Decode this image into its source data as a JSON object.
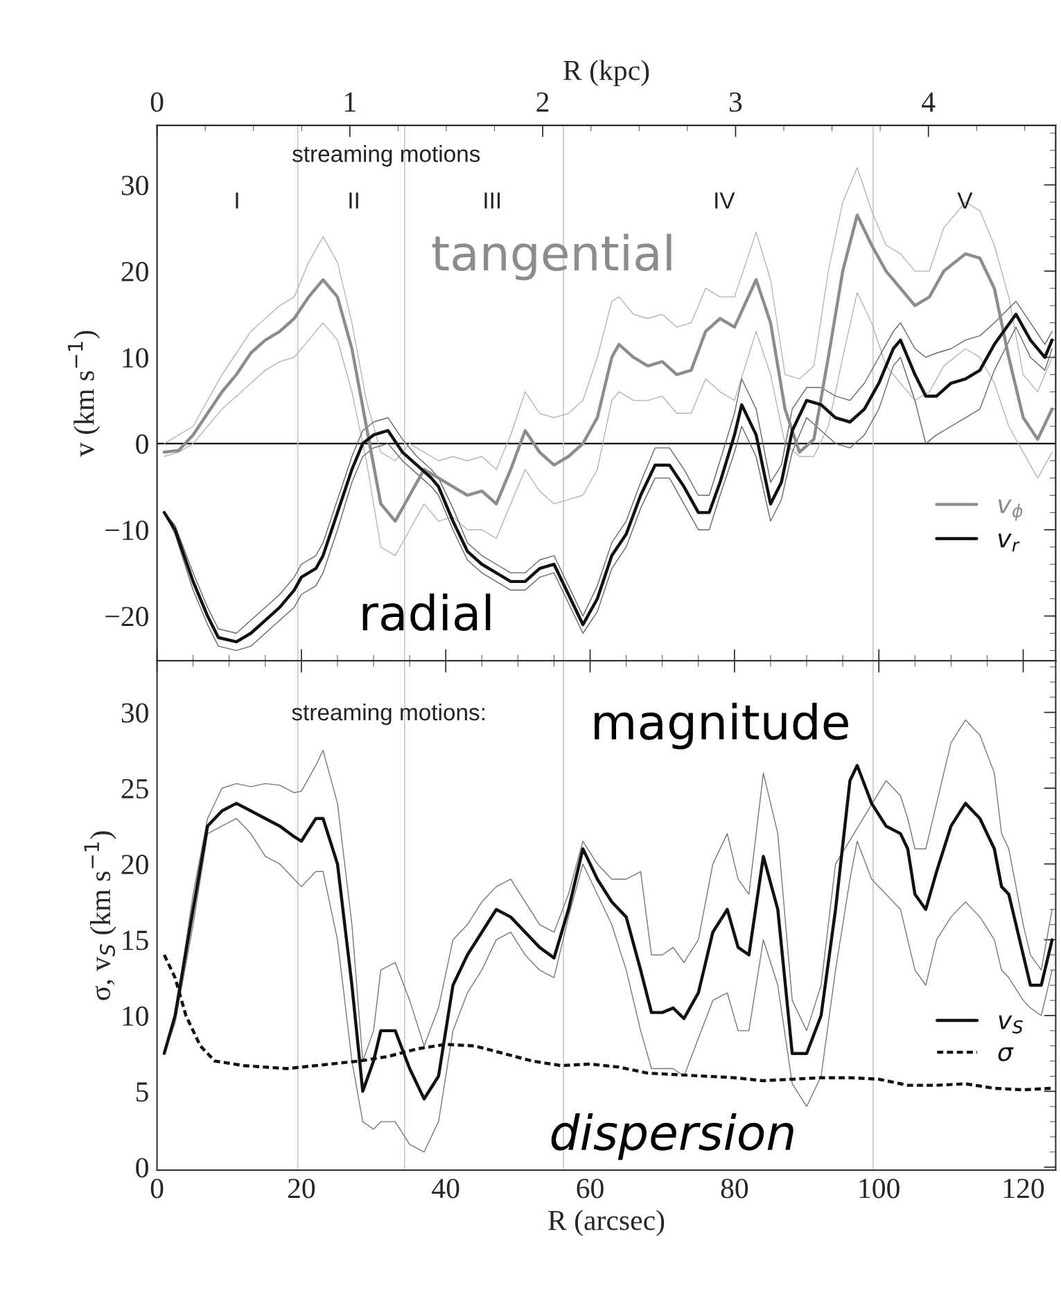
{
  "chart_data": [
    {
      "type": "line",
      "ylabel": "v (km s$^{−1}$)",
      "x2label": "R (kpc)",
      "xlim": [
        0,
        124.5
      ],
      "ylim": [
        -25.2,
        36.9
      ],
      "x2lim": [
        0,
        4.66
      ],
      "xticks": [
        0,
        20,
        40,
        60,
        80,
        100,
        120
      ],
      "tick_labels": "y",
      "x2ticks": [
        0,
        1,
        2,
        3,
        4
      ],
      "yticks": [
        {
          "value": -20,
          "label": "−20"
        },
        {
          "value": -10,
          "label": "−10"
        },
        0,
        10,
        20,
        30
      ],
      "grid": false,
      "legend": "bottom right",
      "ref_lines": [
        {
          "axis": "y",
          "value": 0,
          "color": "#000000"
        },
        {
          "axis": "x",
          "value": 19.5,
          "color": "#c8c8c8"
        },
        {
          "axis": "x",
          "value": 34.3,
          "color": "#c8c8c8"
        },
        {
          "axis": "x",
          "value": 56.3,
          "color": "#c8c8c8"
        },
        {
          "axis": "x",
          "value": 99.2,
          "color": "#c8c8c8"
        }
      ],
      "annotations": [
        "streaming motions",
        "I",
        "II",
        "III",
        "IV",
        "V",
        "tangential",
        "radial"
      ],
      "series": [
        {
          "name": "v$_{ϕ}$",
          "color": "#8c8c8c",
          "x": [
            1,
            3,
            5,
            7,
            9,
            11,
            13,
            15,
            17,
            19,
            21,
            23,
            25,
            27,
            29,
            31,
            33,
            35,
            37,
            39,
            41,
            43,
            45,
            47,
            49,
            51,
            53,
            55,
            57,
            59,
            61,
            63,
            64,
            66,
            68,
            70,
            72,
            74,
            76,
            78,
            80,
            83,
            85,
            87,
            89,
            91,
            93,
            95,
            97,
            99,
            101,
            103,
            105,
            107,
            109,
            112,
            114,
            116,
            118,
            120,
            122,
            124
          ],
          "values": [
            -1,
            -0.8,
            1,
            3.5,
            6,
            8,
            10.5,
            12,
            13,
            14.5,
            17,
            19,
            17,
            11,
            2,
            -7,
            -9,
            -6,
            -3,
            -4,
            -5,
            -6,
            -5.5,
            -7,
            -3,
            1.5,
            -1,
            -2.5,
            -1.5,
            0,
            3,
            10,
            11.5,
            10,
            9,
            9.5,
            8,
            8.5,
            13,
            14.5,
            13.5,
            19,
            14,
            4,
            -1,
            0.5,
            10,
            20,
            26.5,
            23,
            20,
            18,
            16,
            17,
            20,
            22,
            21.5,
            18,
            10,
            3,
            0.5,
            4
          ]
        },
        {
          "color": "#b4b4b4",
          "x": [
            1,
            3,
            5,
            7,
            9,
            11,
            13,
            15,
            17,
            19,
            21,
            23,
            25,
            27,
            29,
            31,
            33,
            35,
            37,
            39,
            41,
            43,
            45,
            47,
            49,
            51,
            53,
            55,
            57,
            59,
            61,
            63,
            64,
            66,
            68,
            70,
            72,
            74,
            76,
            78,
            80,
            83,
            85,
            87,
            89,
            91,
            93,
            95,
            97,
            99,
            101,
            103,
            105,
            107,
            109,
            112,
            114,
            116,
            118,
            120,
            122,
            124
          ],
          "values": [
            0,
            1,
            2,
            5,
            8,
            10.5,
            13,
            14.5,
            16,
            17,
            21,
            24,
            21,
            14,
            5,
            -1,
            -2,
            0,
            -1,
            -2,
            -1.5,
            -2,
            -1.5,
            -3,
            1,
            6,
            3.5,
            3,
            3.5,
            5,
            10,
            16.5,
            17,
            15,
            14.5,
            15,
            13.5,
            14,
            18,
            17,
            17,
            24.5,
            19,
            8,
            7.5,
            9,
            20,
            28,
            32,
            27,
            23,
            22,
            20,
            20,
            25,
            28,
            27,
            23,
            17,
            8,
            6,
            10
          ]
        },
        {
          "color": "#b4b4b4",
          "x": [
            1,
            3,
            5,
            7,
            9,
            11,
            13,
            15,
            17,
            19,
            21,
            23,
            25,
            27,
            29,
            31,
            33,
            35,
            37,
            39,
            41,
            43,
            45,
            47,
            49,
            51,
            53,
            55,
            57,
            59,
            61,
            63,
            64,
            66,
            68,
            70,
            72,
            74,
            76,
            78,
            80,
            83,
            85,
            87,
            89,
            91,
            93,
            95,
            97,
            99,
            101,
            103,
            105,
            107,
            109,
            112,
            114,
            116,
            118,
            120,
            122,
            124
          ],
          "values": [
            -1.5,
            -1,
            0,
            2,
            4,
            5.5,
            7,
            8.5,
            9.5,
            10,
            12,
            14,
            12,
            6,
            -2,
            -12,
            -13,
            -10,
            -7,
            -9,
            -8.5,
            -10,
            -10,
            -11,
            -7,
            -3,
            -5.5,
            -7,
            -6.5,
            -6,
            -3,
            5,
            6,
            5,
            5,
            5.5,
            3.5,
            3.5,
            7.5,
            6,
            5,
            13,
            8,
            0,
            -1.5,
            -1.5,
            2,
            10,
            17.5,
            14,
            9,
            7,
            5,
            6,
            9,
            11,
            10,
            7,
            2,
            -1,
            -4,
            -1
          ]
        },
        {
          "name": "v$_{r}$",
          "color": "#111111",
          "x": [
            1,
            2.5,
            5,
            7,
            8.5,
            11,
            13,
            15,
            17,
            19,
            20,
            22,
            23,
            25,
            27,
            28.5,
            30,
            32,
            34,
            36,
            38,
            39,
            41,
            43,
            45,
            47,
            49,
            51,
            53,
            55,
            57,
            59,
            61,
            63,
            65,
            67,
            69,
            71,
            73,
            75,
            76.5,
            78,
            80,
            81,
            83,
            85,
            86.5,
            88,
            90,
            92,
            94,
            96,
            98,
            100,
            102,
            103,
            105,
            106.5,
            108,
            110,
            112,
            114,
            116,
            119,
            121,
            123,
            124
          ],
          "values": [
            -8,
            -10,
            -16,
            -20,
            -22.5,
            -23,
            -22,
            -20.5,
            -19,
            -17,
            -15.5,
            -14.5,
            -13,
            -8,
            -3,
            0,
            1,
            1.5,
            -1,
            -2.5,
            -4,
            -5,
            -9,
            -12.5,
            -14,
            -15,
            -16,
            -16,
            -14.5,
            -14,
            -17.5,
            -21,
            -18,
            -13,
            -10.5,
            -6,
            -2.5,
            -2.5,
            -5,
            -8,
            -8,
            -4.5,
            1,
            4.5,
            1,
            -7,
            -4.5,
            1.5,
            5,
            4.5,
            3,
            2.5,
            4,
            7,
            11,
            12,
            8,
            5.5,
            5.5,
            7,
            7.5,
            8.5,
            11.5,
            15,
            12,
            10,
            12
          ]
        },
        {
          "color": "#666666",
          "x": [
            1,
            2.5,
            5,
            7,
            8.5,
            11,
            13,
            15,
            17,
            19,
            20,
            22,
            23,
            25,
            27,
            28.5,
            30,
            32,
            34,
            36,
            38,
            39,
            41,
            43,
            45,
            47,
            49,
            51,
            53,
            55,
            57,
            59,
            61,
            63,
            65,
            67,
            69,
            71,
            73,
            75,
            76.5,
            78,
            80,
            81,
            83,
            85,
            86.5,
            88,
            90,
            92,
            94,
            96,
            98,
            100,
            102,
            103,
            105,
            106.5,
            108,
            110,
            112,
            114,
            116,
            119,
            121,
            123,
            124
          ],
          "values": [
            -8,
            -9.5,
            -15,
            -19,
            -21.5,
            -22,
            -20.5,
            -19,
            -17.5,
            -15.5,
            -14,
            -13,
            -11.5,
            -6.5,
            -1.5,
            1.5,
            2.5,
            3,
            0.5,
            -1.5,
            -3,
            -4,
            -7.5,
            -11.5,
            -13,
            -14,
            -15,
            -15,
            -13.5,
            -13,
            -16.5,
            -20,
            -16.5,
            -11.5,
            -9,
            -4.5,
            -0.5,
            -0.5,
            -3,
            -6,
            -6,
            -2,
            3.5,
            7.5,
            4,
            -4.5,
            -2.5,
            4,
            6.5,
            6.5,
            5.5,
            5,
            7,
            10,
            13,
            14,
            11,
            10,
            10.5,
            11,
            12,
            12.5,
            14,
            16.5,
            14,
            11.5,
            13
          ]
        },
        {
          "color": "#666666",
          "x": [
            1,
            2.5,
            5,
            7,
            8.5,
            11,
            13,
            15,
            17,
            19,
            20,
            22,
            23,
            25,
            27,
            28.5,
            30,
            32,
            34,
            36,
            38,
            39,
            41,
            43,
            45,
            47,
            49,
            51,
            53,
            55,
            57,
            59,
            61,
            63,
            65,
            67,
            69,
            71,
            73,
            75,
            76.5,
            78,
            80,
            81,
            83,
            85,
            86.5,
            88,
            90,
            92,
            94,
            96,
            98,
            100,
            102,
            103,
            105,
            106.5,
            108,
            110,
            112,
            114,
            116,
            119,
            121,
            123,
            124
          ],
          "values": [
            -8,
            -10.5,
            -17,
            -21,
            -23.5,
            -24,
            -23.5,
            -22,
            -20.5,
            -19,
            -17.5,
            -16.5,
            -15,
            -10,
            -4.5,
            -1.5,
            -0.5,
            0,
            -2,
            -3.5,
            -5,
            -6,
            -10,
            -13.5,
            -15,
            -16,
            -17,
            -17,
            -15.5,
            -15,
            -18.5,
            -22,
            -19.5,
            -14.5,
            -12,
            -7.5,
            -4,
            -4,
            -7,
            -10,
            -10,
            -6,
            -1,
            2,
            -1.5,
            -9,
            -6.5,
            -1,
            3,
            1.5,
            0,
            -0.5,
            1,
            4,
            9,
            10,
            5,
            0,
            1,
            2,
            3,
            4,
            8.5,
            13.5,
            10,
            8.5,
            11
          ]
        }
      ]
    },
    {
      "type": "line",
      "xlabel": "R (arcsec)",
      "ylabel": "σ, v$_{S}$ (km s$^{−1}$)",
      "xlim": [
        0,
        124.5
      ],
      "ylim": [
        -0.2,
        33.4
      ],
      "xticks": [
        0,
        20,
        40,
        60,
        80,
        100,
        120
      ],
      "yticks": [
        0,
        5,
        10,
        15,
        20,
        25,
        30
      ],
      "grid": false,
      "legend": "bottom right",
      "ref_lines": [
        {
          "axis": "x",
          "value": 19.5,
          "color": "#c8c8c8"
        },
        {
          "axis": "x",
          "value": 34.3,
          "color": "#c8c8c8"
        },
        {
          "axis": "x",
          "value": 56.3,
          "color": "#c8c8c8"
        },
        {
          "axis": "x",
          "value": 99.2,
          "color": "#c8c8c8"
        }
      ],
      "annotations": [
        "streaming motions:",
        "magnitude",
        "dispersion"
      ],
      "series": [
        {
          "name": "v$_{S}$",
          "color": "#111111",
          "line_style": "solid",
          "x": [
            1,
            2.5,
            5,
            7,
            9,
            11,
            13,
            15,
            17,
            19,
            20,
            22,
            23,
            25,
            27,
            28.5,
            30,
            31,
            33,
            35,
            37,
            39,
            41,
            43,
            45,
            47,
            49,
            51,
            53,
            55,
            57,
            59,
            61,
            63,
            65,
            67,
            68.5,
            70,
            71.5,
            73,
            75,
            77,
            79,
            80.5,
            82,
            84,
            86,
            88,
            90,
            92,
            94,
            96,
            97,
            99,
            101,
            103,
            104,
            105,
            106.5,
            108,
            110,
            112,
            114,
            116,
            117,
            118,
            120,
            121,
            122.5,
            124
          ],
          "values": [
            7.5,
            10,
            17,
            22.5,
            23.5,
            24,
            23.5,
            23,
            22.5,
            21.8,
            21.5,
            23,
            23,
            20,
            12,
            5,
            7,
            9,
            9,
            6.5,
            4.5,
            6,
            12,
            14,
            15.5,
            17,
            16.5,
            15.5,
            14.5,
            13.8,
            17,
            21,
            19,
            17.5,
            16.5,
            13,
            10.2,
            10.2,
            10.5,
            9.8,
            11.5,
            15.5,
            17,
            14.5,
            14,
            20.5,
            17,
            7.5,
            7.5,
            10,
            17,
            25.5,
            26.5,
            24,
            22.5,
            22,
            21,
            18,
            17,
            19.5,
            22.5,
            24,
            23,
            21,
            18.5,
            18,
            14,
            12,
            12,
            15
          ]
        },
        {
          "color": "#777777",
          "line_style": "solid",
          "x": [
            1,
            2.5,
            5,
            7,
            9,
            11,
            13,
            15,
            17,
            19,
            20,
            22,
            23,
            25,
            27,
            28.5,
            30,
            31,
            33,
            35,
            37,
            39,
            41,
            43,
            45,
            47,
            49,
            51,
            53,
            55,
            57,
            59,
            61,
            63,
            65,
            67,
            68.5,
            70,
            71.5,
            73,
            75,
            77,
            79,
            80.5,
            82,
            84,
            86,
            88,
            90,
            92,
            94,
            96,
            97,
            99,
            101,
            103,
            104,
            105,
            106.5,
            108,
            110,
            112,
            114,
            116,
            117,
            118,
            120,
            121,
            122.5,
            124
          ],
          "values": [
            7.5,
            10,
            18,
            23,
            25,
            25.3,
            25.1,
            25.3,
            25.2,
            24.7,
            24.8,
            26.5,
            27.5,
            24,
            16,
            7,
            9,
            13,
            13.5,
            11,
            8,
            10.5,
            15,
            16,
            17.5,
            18.5,
            19,
            17.5,
            16,
            15.5,
            18,
            21.5,
            20,
            19,
            19,
            19.5,
            14,
            14,
            14.5,
            13.5,
            15,
            20,
            22,
            19,
            18,
            26,
            22,
            11,
            9,
            12,
            20,
            null,
            null,
            null,
            25.5,
            24.5,
            23,
            21,
            21,
            24,
            28,
            29.5,
            28.5,
            26,
            22,
            21,
            16,
            14,
            13,
            17
          ]
        },
        {
          "color": "#777777",
          "line_style": "solid",
          "x": [
            1,
            2.5,
            5,
            7,
            9,
            11,
            13,
            15,
            17,
            19,
            20,
            22,
            23,
            25,
            27,
            28.5,
            30,
            31,
            33,
            35,
            37,
            39,
            41,
            43,
            45,
            47,
            49,
            51,
            53,
            55,
            57,
            59,
            61,
            63,
            65,
            67,
            68.5,
            70,
            71.5,
            73,
            75,
            77,
            79,
            80.5,
            82,
            84,
            86,
            88,
            90,
            92,
            94,
            96,
            97,
            99,
            101,
            103,
            104,
            105,
            106.5,
            108,
            110,
            112,
            114,
            116,
            117,
            118,
            120,
            121,
            122.5,
            124
          ],
          "values": [
            7.5,
            9.5,
            16,
            22,
            22.5,
            23,
            22,
            20.5,
            20,
            19,
            18.5,
            19.5,
            19.5,
            15,
            7,
            3,
            2.5,
            3,
            3,
            1.5,
            1,
            3,
            9,
            11.5,
            13,
            15,
            15.5,
            14,
            13,
            12.5,
            16.5,
            20,
            18,
            16,
            13,
            9,
            6.5,
            6.5,
            6.5,
            6,
            8.5,
            11,
            11.5,
            9,
            9,
            15,
            12,
            5.5,
            4,
            6,
            13,
            19,
            21.5,
            19,
            18,
            17,
            15,
            13,
            12,
            15,
            16.5,
            17.5,
            16.5,
            15,
            13,
            12.5,
            11,
            10.5,
            10,
            13
          ]
        },
        {
          "name": "σ",
          "color": "#111111",
          "line_style": "dashed",
          "x": [
            1,
            2.5,
            4,
            6,
            8,
            12,
            18,
            24,
            28,
            32,
            36,
            40,
            44,
            48,
            52,
            56,
            60,
            64,
            68,
            72,
            76,
            80,
            84,
            88,
            92,
            96,
            100,
            104,
            108,
            112,
            116,
            120,
            124
          ],
          "values": [
            14,
            12.5,
            10,
            8,
            7,
            6.7,
            6.5,
            6.8,
            7,
            7.3,
            7.8,
            8.1,
            8,
            7.5,
            7,
            6.7,
            6.8,
            6.6,
            6.2,
            6.1,
            6,
            5.9,
            5.7,
            5.8,
            5.9,
            5.9,
            5.8,
            5.4,
            5.4,
            5.5,
            5.2,
            5.1,
            5.2
          ]
        }
      ]
    }
  ]
}
